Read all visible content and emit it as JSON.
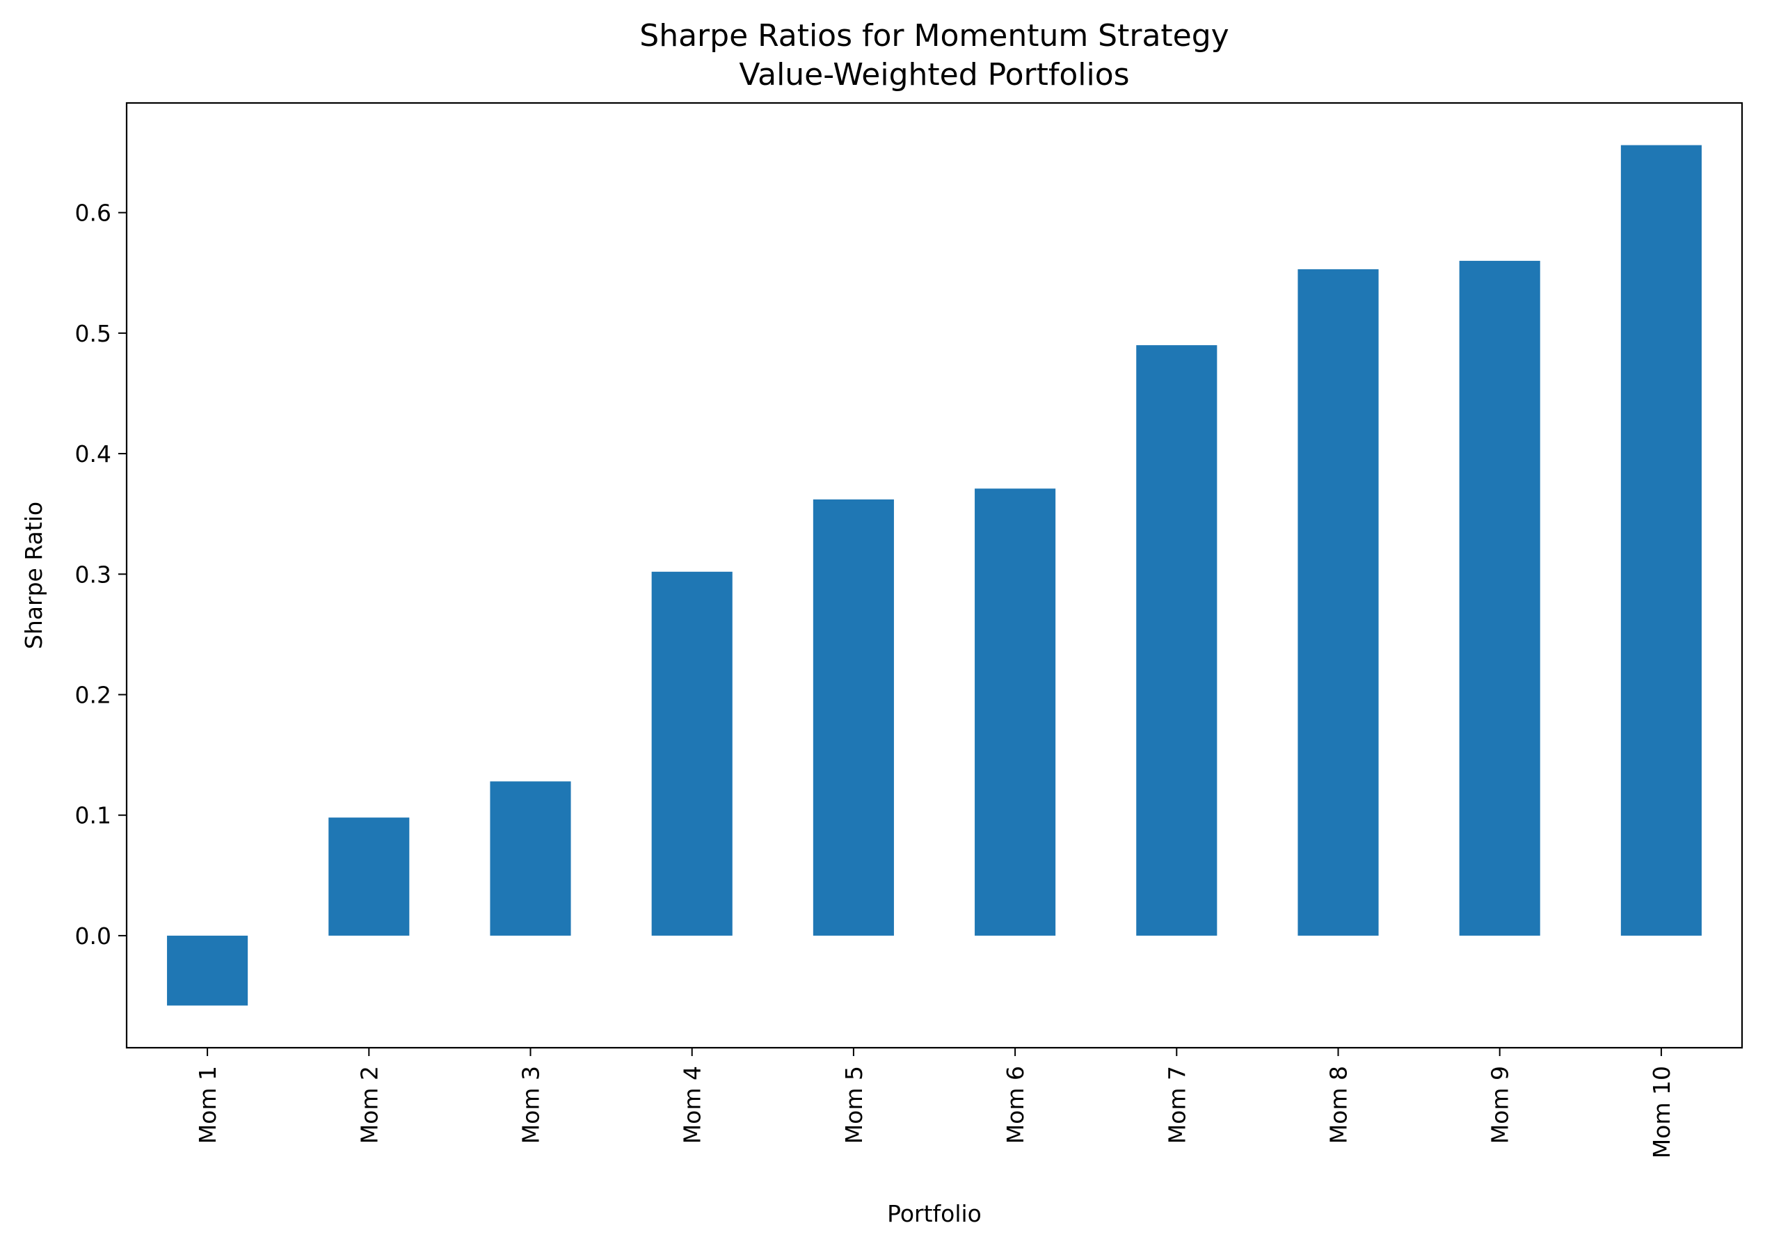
{
  "chart_data": {
    "type": "bar",
    "title": "Sharpe Ratios for Momentum Strategy",
    "subtitle": "Value-Weighted Portfolios",
    "xlabel": "Portfolio",
    "ylabel": "Sharpe Ratio",
    "categories": [
      "Mom 1",
      "Mom 2",
      "Mom 3",
      "Mom 4",
      "Mom 5",
      "Mom 6",
      "Mom 7",
      "Mom 8",
      "Mom 9",
      "Mom 10"
    ],
    "values": [
      -0.058,
      0.098,
      0.128,
      0.302,
      0.362,
      0.371,
      0.49,
      0.553,
      0.56,
      0.656
    ],
    "ylim": [
      -0.093,
      0.691
    ],
    "yticks": [
      0.0,
      0.1,
      0.2,
      0.3,
      0.4,
      0.5,
      0.6
    ],
    "ytick_labels": [
      "0.0",
      "0.1",
      "0.2",
      "0.3",
      "0.4",
      "0.5",
      "0.6"
    ],
    "grid": false,
    "legend": "none",
    "bar_color": "#1f77b4"
  }
}
